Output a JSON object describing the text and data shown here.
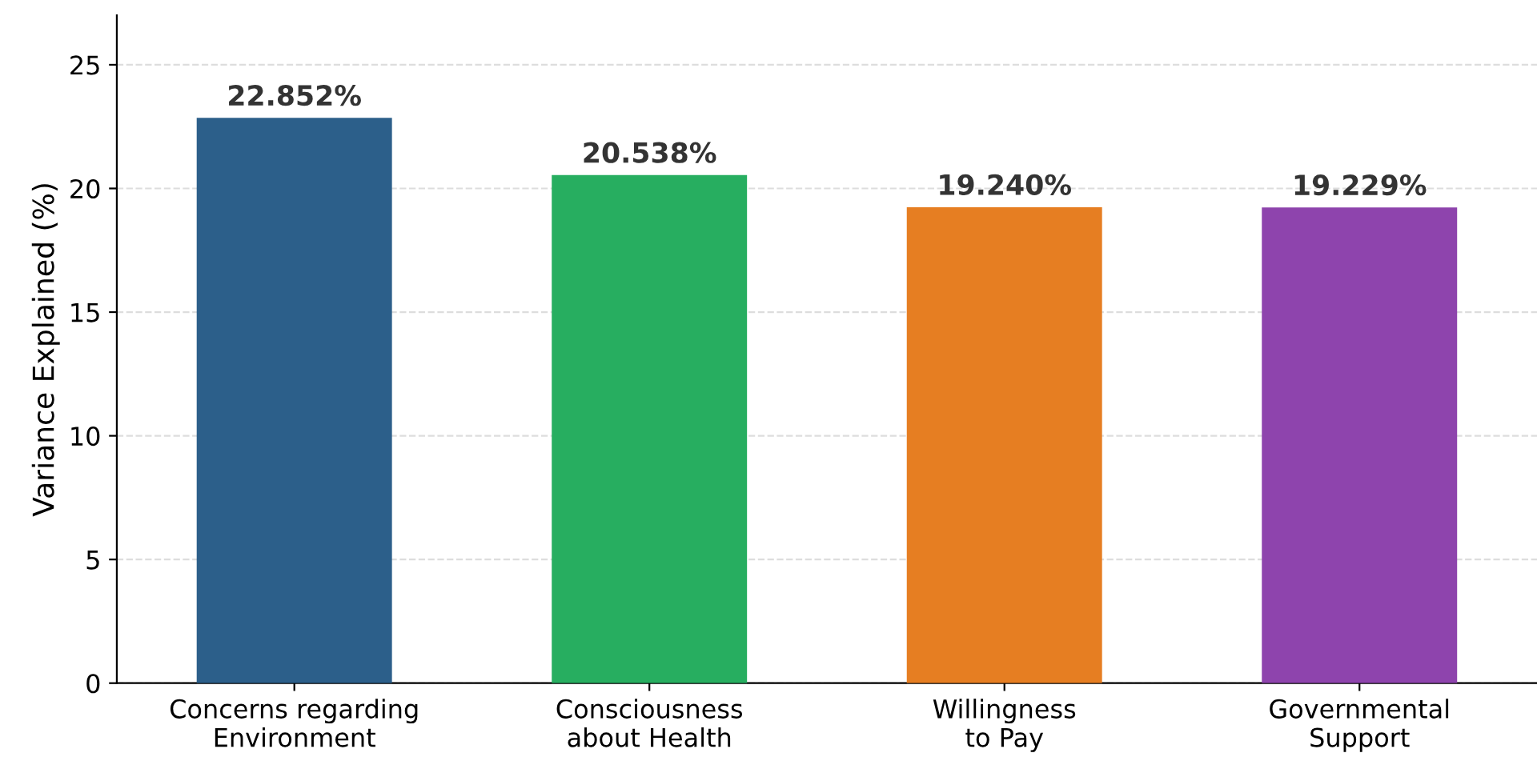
{
  "chart_data": {
    "type": "bar",
    "ylabel": "Variance Explained (%)",
    "categories": [
      "Concerns regarding\nEnvironment",
      "Consciousness\nabout Health",
      "Willingness\nto Pay",
      "Governmental\nSupport"
    ],
    "values": [
      22.852,
      20.538,
      19.24,
      19.229
    ],
    "colors": [
      "#2c5f8a",
      "#27ae60",
      "#e67e22",
      "#8e44ad"
    ],
    "value_labels": [
      "22.852%",
      "20.538%",
      "19.240%",
      "19.229%"
    ],
    "ylim": [
      0,
      27
    ],
    "yticks": [
      0,
      5,
      10,
      15,
      20,
      25
    ],
    "grid": "y"
  }
}
